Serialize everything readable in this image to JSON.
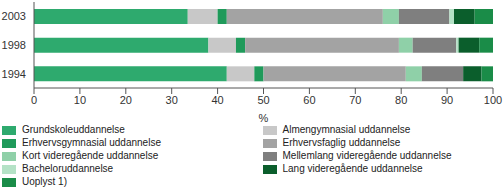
{
  "chart_data": {
    "type": "bar",
    "orientation": "horizontal",
    "stacked": true,
    "grid": false,
    "legend": "bottom",
    "x_label": "%",
    "categories": [
      "2003",
      "1998",
      "1994"
    ],
    "xlim": [
      0,
      100
    ],
    "xticks": [
      0,
      10,
      20,
      30,
      40,
      50,
      60,
      70,
      80,
      90,
      100
    ],
    "series": [
      {
        "name": "Grundskoleuddannelse",
        "color": "#2eaa6e",
        "values": [
          33.5,
          38,
          42
        ]
      },
      {
        "name": "Almengymnasial uddannelse",
        "color": "#c8c8c8",
        "values": [
          6.5,
          6,
          6
        ]
      },
      {
        "name": "Erhvervsgymnasial uddannelse",
        "color": "#1f9a5a",
        "values": [
          2,
          2,
          2
        ]
      },
      {
        "name": "Erhvervsfaglig uddannelse",
        "color": "#a3a3a3",
        "values": [
          34,
          33.5,
          31
        ]
      },
      {
        "name": "Kort videregående uddannelse",
        "color": "#8fd0a8",
        "values": [
          3.5,
          3,
          3.5
        ]
      },
      {
        "name": "Mellemlang videregående uddannelse",
        "color": "#7f7f7f",
        "values": [
          11,
          9.5,
          9
        ]
      },
      {
        "name": "Bacheloruddannelse",
        "color": "#b4e2c6",
        "values": [
          1,
          0.5,
          0
        ]
      },
      {
        "name": "Lang videregående uddannelse",
        "color": "#0b5e2c",
        "values": [
          4.5,
          4.5,
          4
        ]
      },
      {
        "name": "Uoplyst 1)",
        "color": "#1a8c48",
        "values": [
          4,
          3,
          2.5
        ]
      }
    ]
  }
}
